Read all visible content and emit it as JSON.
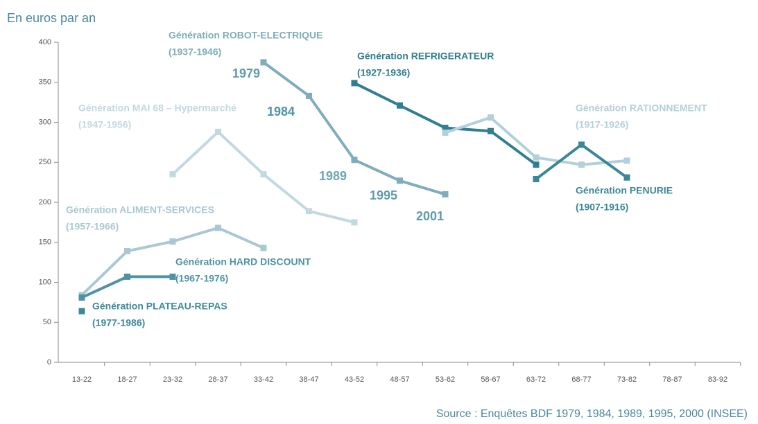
{
  "chart_data": {
    "type": "line",
    "ylabel": "En euros par an",
    "source": "Source : Enquêtes BDF 1979, 1984, 1989, 1995, 2000 (INSEE)",
    "categories": [
      "13-22",
      "18-27",
      "23-32",
      "28-37",
      "33-42",
      "38-47",
      "43-52",
      "48-57",
      "53-62",
      "58-67",
      "63-72",
      "68-77",
      "73-82",
      "78-87",
      "83-92"
    ],
    "ylim": [
      0,
      400
    ],
    "yticks": [
      0,
      50,
      100,
      150,
      200,
      250,
      300,
      350,
      400
    ],
    "series": [
      {
        "name": "Génération ROBOT-ELECTRIQUE",
        "period": "(1937-1946)",
        "color": "#7fadbb",
        "values": [
          null,
          null,
          null,
          null,
          375,
          333,
          253,
          227,
          210,
          null,
          null,
          null,
          null,
          null,
          null
        ]
      },
      {
        "name": "Génération REFRIGERATEUR",
        "period": "(1927-1936)",
        "color": "#2f7f90",
        "values": [
          null,
          null,
          null,
          null,
          null,
          null,
          349,
          321,
          293,
          289,
          247,
          null,
          null,
          null,
          null
        ]
      },
      {
        "name": "Génération MAI 68 – Hypermarché",
        "period": "(1947-1956)",
        "color": "#c2d9e1",
        "values": [
          null,
          null,
          235,
          288,
          235,
          189,
          175,
          null,
          null,
          null,
          null,
          null,
          null,
          null,
          null
        ]
      },
      {
        "name": "Génération RATIONNEMENT",
        "period": "(1917-1926)",
        "color": "#b3d0da",
        "values": [
          null,
          null,
          null,
          null,
          null,
          null,
          null,
          null,
          287,
          306,
          256,
          247,
          252,
          null,
          null
        ]
      },
      {
        "name": "Génération PENURIE",
        "period": "(1907-1916)",
        "color": "#3a8797",
        "values": [
          null,
          null,
          null,
          null,
          null,
          null,
          null,
          null,
          null,
          null,
          229,
          272,
          231,
          null,
          null
        ]
      },
      {
        "name": "Génération ALIMENT-SERVICES",
        "period": "(1957-1966)",
        "color": "#a9c8d2",
        "values": [
          84,
          139,
          151,
          168,
          143,
          null,
          null,
          null,
          null,
          null,
          null,
          null,
          null,
          null,
          null
        ]
      },
      {
        "name": "Génération HARD DISCOUNT",
        "period": "(1967-1976)",
        "color": "#4e93a3",
        "values": [
          81,
          107,
          107,
          null,
          null,
          null,
          null,
          null,
          null,
          null,
          null,
          null,
          null,
          null,
          null
        ]
      },
      {
        "name": "Génération PLATEAU-REPAS",
        "period": "(1977-1986)",
        "color": "#3d8a9a",
        "values": [
          64,
          null,
          null,
          null,
          null,
          null,
          null,
          null,
          null,
          null,
          null,
          null,
          null,
          null,
          null
        ]
      }
    ],
    "annotations": [
      "1979",
      "1984",
      "1989",
      "1995",
      "2001"
    ]
  }
}
